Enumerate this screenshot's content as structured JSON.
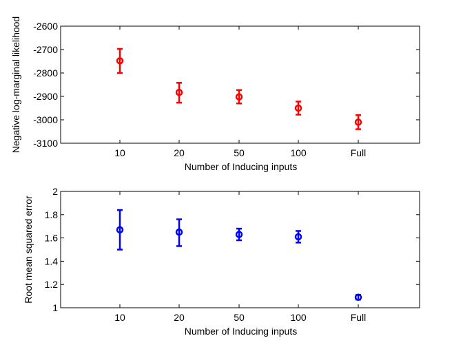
{
  "chart_data": [
    {
      "type": "scatter",
      "categories": [
        "10",
        "20",
        "50",
        "100",
        "Full"
      ],
      "values": [
        -2748,
        -2883,
        -2902,
        -2950,
        -3010
      ],
      "error": [
        [
          -2800,
          -2697
        ],
        [
          -2927,
          -2842
        ],
        [
          -2930,
          -2873
        ],
        [
          -2978,
          -2922
        ],
        [
          -3040,
          -2980
        ]
      ],
      "xlabel": "Number of Inducing inputs",
      "ylabel": "Negative log-marginal likelihood",
      "ylim": [
        -3100,
        -2600
      ],
      "yticks": [
        -2600,
        -2700,
        -2800,
        -2900,
        -3000,
        -3100
      ],
      "color": "#ff0000",
      "marker": "circle",
      "grid": false
    },
    {
      "type": "scatter",
      "categories": [
        "10",
        "20",
        "50",
        "100",
        "Full"
      ],
      "values": [
        1.67,
        1.65,
        1.63,
        1.61,
        1.09
      ],
      "error": [
        [
          1.5,
          1.84
        ],
        [
          1.53,
          1.76
        ],
        [
          1.58,
          1.68
        ],
        [
          1.56,
          1.66
        ],
        [
          1.07,
          1.11
        ]
      ],
      "xlabel": "Number of Inducing inputs",
      "ylabel": "Root mean squared error",
      "ylim": [
        1,
        2
      ],
      "yticks": [
        "1",
        "1.2",
        "1.4",
        "1.6",
        "1.8",
        "2"
      ],
      "color": "#0000ff",
      "marker": "circle",
      "grid": false
    }
  ]
}
